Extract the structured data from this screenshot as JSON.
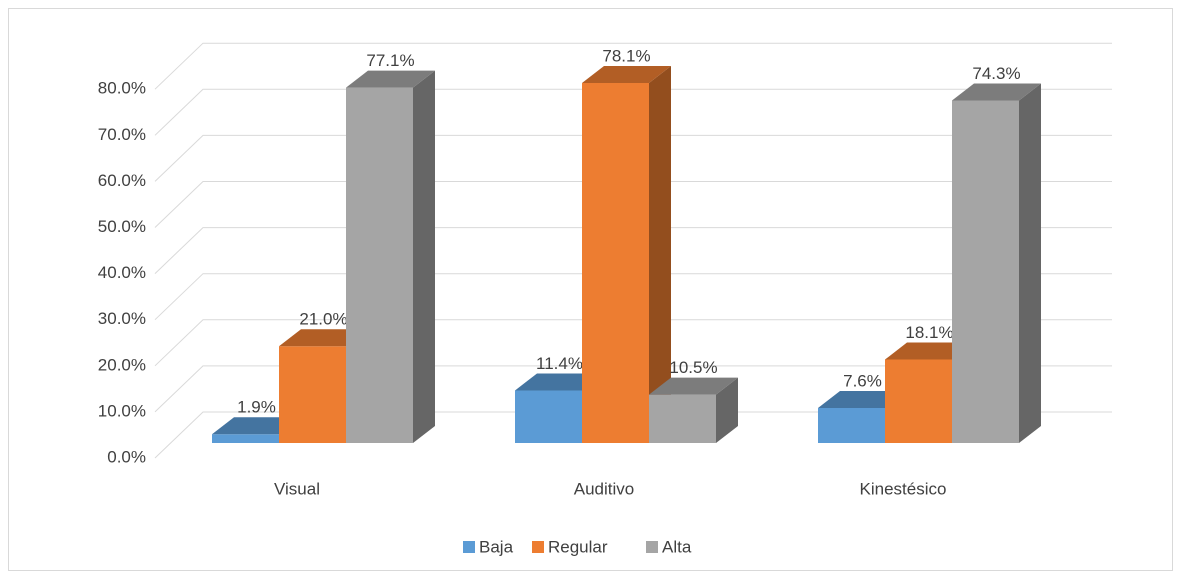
{
  "chart_data": {
    "type": "bar3d",
    "categories": [
      "Visual",
      "Auditivo",
      "Kinestésico"
    ],
    "series": [
      {
        "name": "Baja",
        "color": "#5b9bd5",
        "values": [
          1.9,
          11.4,
          7.6
        ],
        "value_labels": [
          "1.9%",
          "11.4%",
          "7.6%"
        ]
      },
      {
        "name": "Regular",
        "color": "#ed7d31",
        "values": [
          21.0,
          78.1,
          18.1
        ],
        "value_labels": [
          "21.0%",
          "78.1%",
          "18.1%"
        ]
      },
      {
        "name": "Alta",
        "color": "#a5a5a5",
        "values": [
          77.1,
          10.5,
          74.3
        ],
        "value_labels": [
          "77.1%",
          "10.5%",
          "74.3%"
        ]
      }
    ],
    "ylim": [
      0,
      80
    ],
    "yticks": [
      {
        "value": 0,
        "label": "0.0%"
      },
      {
        "value": 10,
        "label": "10.0%"
      },
      {
        "value": 20,
        "label": "20.0%"
      },
      {
        "value": 30,
        "label": "30.0%"
      },
      {
        "value": 40,
        "label": "40.0%"
      },
      {
        "value": 50,
        "label": "50.0%"
      },
      {
        "value": 60,
        "label": "60.0%"
      },
      {
        "value": 70,
        "label": "70.0%"
      },
      {
        "value": 80,
        "label": "80.0%"
      }
    ],
    "grid": true,
    "legend": "bottom"
  }
}
